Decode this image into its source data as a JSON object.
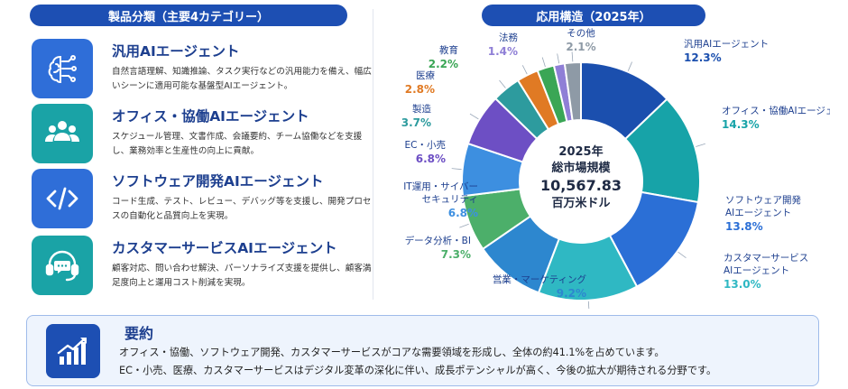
{
  "left_header": "製品分類（主要4カテゴリー）",
  "right_header": "応用構造（2025年）",
  "categories": [
    {
      "title": "汎用AIエージェント",
      "desc": "自然言語理解、知識推論、タスク実行などの汎用能力を備え、幅広いシーンに適用可能な基盤型AIエージェント。",
      "icon": "ai-brain-circuit-icon",
      "color": "#2f6ed8"
    },
    {
      "title": "オフィス・協働AIエージェント",
      "desc": "スケジュール管理、文書作成、会議要約、チーム協働などを支援し、業務効率と生産性の向上に貢献。",
      "icon": "team-people-icon",
      "color": "#1aa3a6"
    },
    {
      "title": "ソフトウェア開発AIエージェント",
      "desc": "コード生成、テスト、レビュー、デバッグ等を支援し、開発プロセスの自動化と品質向上を実現。",
      "icon": "code-brackets-icon",
      "color": "#2f6ed8"
    },
    {
      "title": "カスタマーサービスAIエージェント",
      "desc": "顧客対応、問い合わせ解決、パーソナライズ支援を提供し、顧客満足度向上と運用コスト削減を実現。",
      "icon": "headset-chat-icon",
      "color": "#1aa3a6"
    }
  ],
  "chart_data": {
    "type": "pie",
    "title": "応用構造（2025年）",
    "center_label": {
      "year": "2025年",
      "label": "総市場規模",
      "value": "10,567.83",
      "unit": "百万米ドル"
    },
    "slices": [
      {
        "label": "汎用AIエージェント",
        "value": 12.3,
        "display": "12.3%",
        "color": "#1b4fae"
      },
      {
        "label": "オフィス・協働AIエージェント",
        "value": 14.3,
        "display": "14.3%",
        "color": "#17a3a8"
      },
      {
        "label": "ソフトウェア開発\nAIエージェント",
        "value": 13.8,
        "display": "13.8%",
        "color": "#2b6fd6"
      },
      {
        "label": "カスタマーサービス\nAIエージェント",
        "value": 13.0,
        "display": "13.0%",
        "color": "#2fb8c3"
      },
      {
        "label": "営業・マーケティング",
        "value": 9.2,
        "display": "9.2%",
        "color": "#2d87cf"
      },
      {
        "label": "データ分析・BI",
        "value": 7.3,
        "display": "7.3%",
        "color": "#4caf6a"
      },
      {
        "label": "IT運用・サイバー\nセキュリティ",
        "value": 6.8,
        "display": "6.8%",
        "color": "#3d8fe0"
      },
      {
        "label": "EC・小売",
        "value": 6.8,
        "display": "6.8%",
        "color": "#6d4fc4"
      },
      {
        "label": "製造",
        "value": 3.7,
        "display": "3.7%",
        "color": "#2d9b9e"
      },
      {
        "label": "医療",
        "value": 2.8,
        "display": "2.8%",
        "color": "#e07a24"
      },
      {
        "label": "教育",
        "value": 2.2,
        "display": "2.2%",
        "color": "#3aa655"
      },
      {
        "label": "法務",
        "value": 1.4,
        "display": "1.4%",
        "color": "#8f7fd6"
      },
      {
        "label": "その他",
        "value": 2.1,
        "display": "2.1%",
        "color": "#8e9aa6"
      }
    ]
  },
  "summary": {
    "title": "要約",
    "icon": "growth-chart-icon",
    "line1": "オフィス・協働、ソフトウェア開発、カスタマーサービスがコアな需要領域を形成し、全体の約41.1%を占めています。",
    "line2": "EC・小売、医療、カスタマーサービスはデジタル変革の深化に伴い、成長ポテンシャルが高く、今後の拡大が期待される分野です。"
  }
}
